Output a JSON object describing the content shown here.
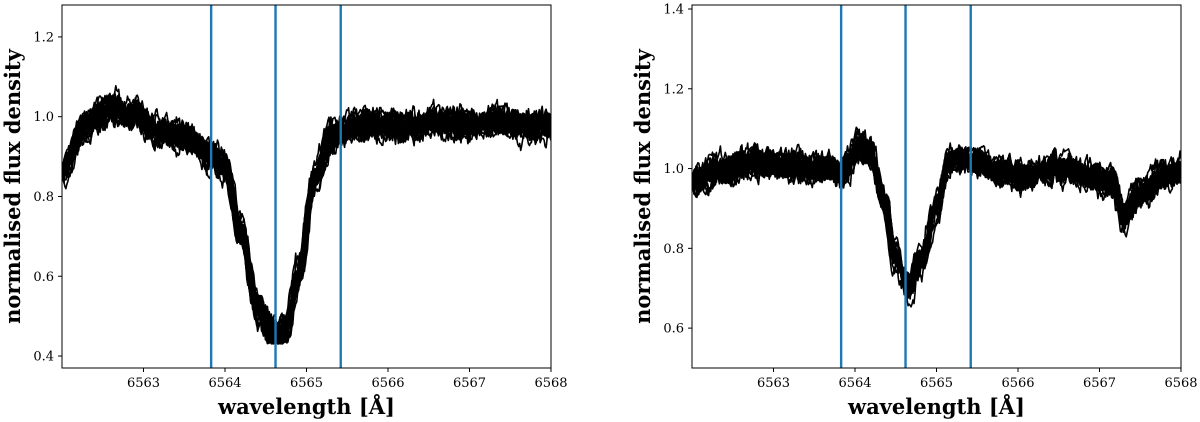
{
  "chart_data": [
    {
      "type": "line",
      "xlabel": "wavelength [Å]",
      "ylabel": "normalised flux density",
      "xlim": [
        6562,
        6568
      ],
      "ylim": [
        0.37,
        1.28
      ],
      "xticks": [
        6563,
        6564,
        6565,
        6566,
        6567,
        6568
      ],
      "xtick_labels": [
        "6563",
        "6564",
        "6565",
        "6566",
        "6567",
        "6568"
      ],
      "yticks": [
        0.4,
        0.6,
        0.8,
        1.0,
        1.2
      ],
      "ytick_labels": [
        "0.4",
        "0.6",
        "0.8",
        "1.0",
        "1.2"
      ],
      "vlines": [
        6563.83,
        6564.62,
        6565.42
      ],
      "vline_color": "#1f77b4",
      "line_color": "#000000",
      "n_series": 24,
      "series_min_flux": 0.43,
      "profile": {
        "x": [
          6562.0,
          6562.3,
          6562.6,
          6562.9,
          6563.2,
          6563.5,
          6563.8,
          6564.0,
          6564.2,
          6564.4,
          6564.6,
          6564.75,
          6564.9,
          6565.1,
          6565.3,
          6565.5,
          6565.8,
          6566.2,
          6566.6,
          6567.0,
          6567.4,
          6567.8,
          6568.0
        ],
        "y": [
          0.87,
          0.98,
          1.02,
          1.0,
          0.96,
          0.95,
          0.91,
          0.88,
          0.72,
          0.54,
          0.46,
          0.48,
          0.62,
          0.85,
          0.95,
          0.97,
          0.98,
          0.97,
          0.99,
          0.98,
          0.99,
          0.97,
          0.98
        ]
      }
    },
    {
      "type": "line",
      "xlabel": "wavelength [Å]",
      "ylabel": "normalised flux density",
      "xlim": [
        6562,
        6568
      ],
      "ylim": [
        0.5,
        1.41
      ],
      "xticks": [
        6563,
        6564,
        6565,
        6566,
        6567,
        6568
      ],
      "xtick_labels": [
        "6563",
        "6564",
        "6565",
        "6566",
        "6567",
        "6568"
      ],
      "yticks": [
        0.6,
        0.8,
        1.0,
        1.2,
        1.4
      ],
      "ytick_labels": [
        "0.6",
        "0.8",
        "1.0",
        "1.2",
        "1.4"
      ],
      "vlines": [
        6563.83,
        6564.62,
        6565.42
      ],
      "vline_color": "#1f77b4",
      "line_color": "#000000",
      "n_series": 24,
      "series_min_flux": 0.64,
      "profile": {
        "x": [
          6562.0,
          6562.4,
          6562.8,
          6563.2,
          6563.6,
          6563.85,
          6564.05,
          6564.2,
          6564.35,
          6564.5,
          6564.65,
          6564.8,
          6565.0,
          6565.15,
          6565.3,
          6565.5,
          6565.8,
          6566.1,
          6566.5,
          6566.9,
          6567.15,
          6567.3,
          6567.5,
          6567.8,
          6568.0
        ],
        "y": [
          0.97,
          1.0,
          1.02,
          1.01,
          1.0,
          0.99,
          1.06,
          1.04,
          0.92,
          0.76,
          0.68,
          0.74,
          0.9,
          1.02,
          1.03,
          1.02,
          0.99,
          0.98,
          1.0,
          0.98,
          0.97,
          0.88,
          0.94,
          0.98,
          0.99
        ]
      }
    }
  ]
}
